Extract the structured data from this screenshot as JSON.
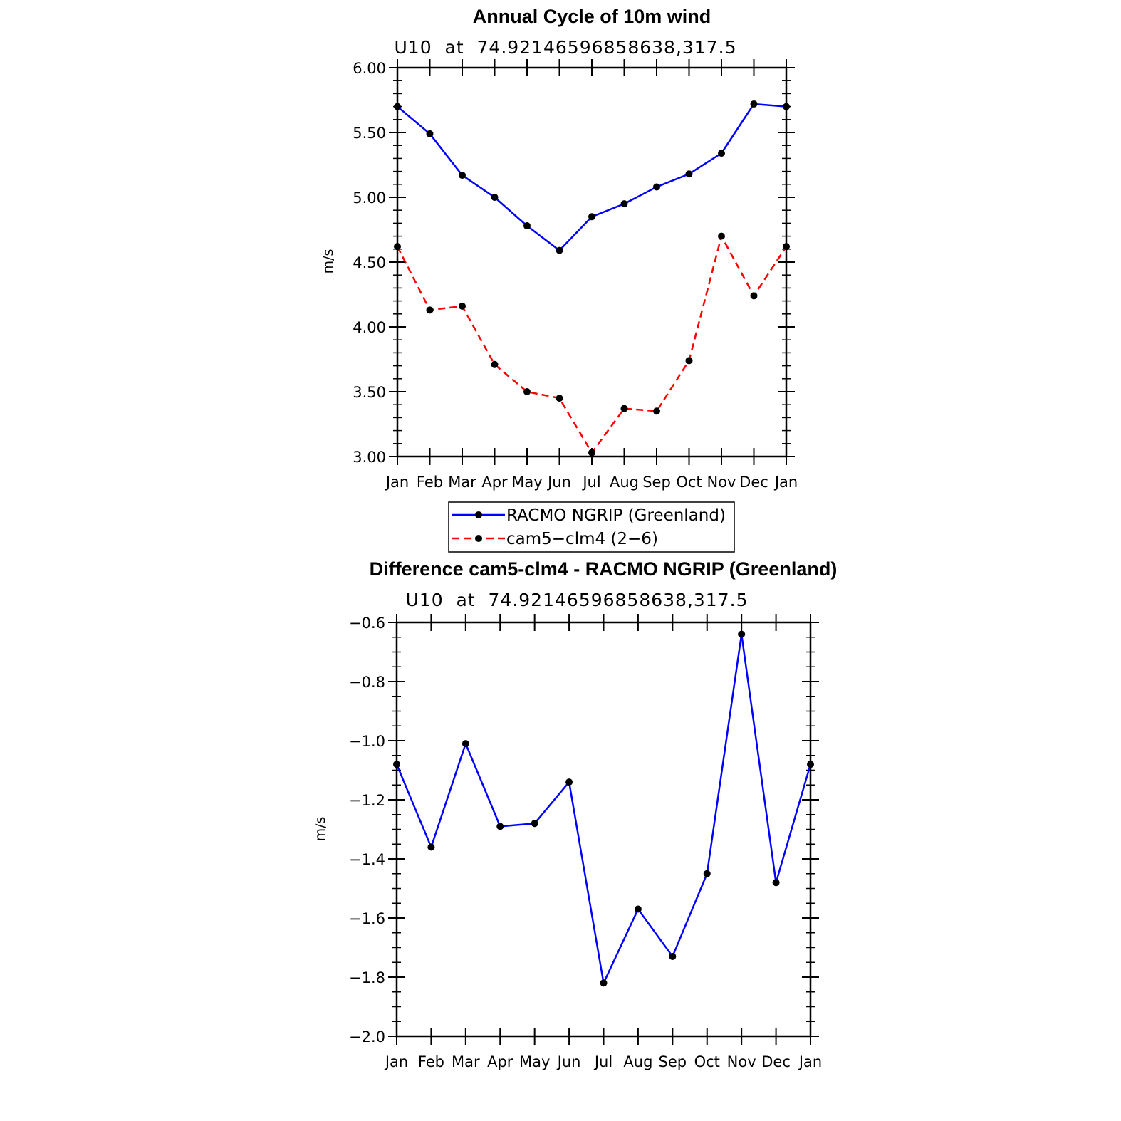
{
  "chart_data": [
    {
      "type": "line",
      "title": "Annual Cycle of 10m wind",
      "subtitle": "U10  at  74.92146596858638,317.5",
      "ylabel": "m/s",
      "xlabel": "",
      "categories": [
        "Jan",
        "Feb",
        "Mar",
        "Apr",
        "May",
        "Jun",
        "Jul",
        "Aug",
        "Sep",
        "Oct",
        "Nov",
        "Dec",
        "Jan"
      ],
      "ylim": [
        3.0,
        6.0
      ],
      "yticks": [
        "3.00",
        "3.50",
        "4.00",
        "4.50",
        "5.00",
        "5.50",
        "6.00"
      ],
      "series": [
        {
          "name": "RACMO NGRIP (Greenland)",
          "color": "#0000ff",
          "dash": "solid",
          "values": [
            5.7,
            5.49,
            5.17,
            5.0,
            4.78,
            4.59,
            4.85,
            4.95,
            5.08,
            5.18,
            5.34,
            5.72,
            5.7
          ]
        },
        {
          "name": "cam5−clm4 (2−6)",
          "color": "#ff0000",
          "dash": "dashed",
          "values": [
            4.62,
            4.13,
            4.16,
            3.71,
            3.5,
            3.45,
            3.03,
            3.37,
            3.35,
            3.74,
            4.7,
            4.24,
            4.62
          ]
        }
      ],
      "legend": "below"
    },
    {
      "type": "line",
      "title": "Difference cam5-clm4 - RACMO NGRIP (Greenland)",
      "subtitle": "U10  at  74.92146596858638,317.5",
      "ylabel": "m/s",
      "xlabel": "",
      "categories": [
        "Jan",
        "Feb",
        "Mar",
        "Apr",
        "May",
        "Jun",
        "Jul",
        "Aug",
        "Sep",
        "Oct",
        "Nov",
        "Dec",
        "Jan"
      ],
      "ylim": [
        -2.0,
        -0.6
      ],
      "yticks": [
        "−2.0",
        "−1.8",
        "−1.6",
        "−1.4",
        "−1.2",
        "−1.0",
        "−0.8",
        "−0.6"
      ],
      "series": [
        {
          "color": "#0000ff",
          "dash": "solid",
          "values": [
            -1.08,
            -1.36,
            -1.01,
            -1.29,
            -1.28,
            -1.14,
            -1.82,
            -1.57,
            -1.73,
            -1.45,
            -0.64,
            -1.48,
            -1.08
          ]
        }
      ]
    }
  ]
}
